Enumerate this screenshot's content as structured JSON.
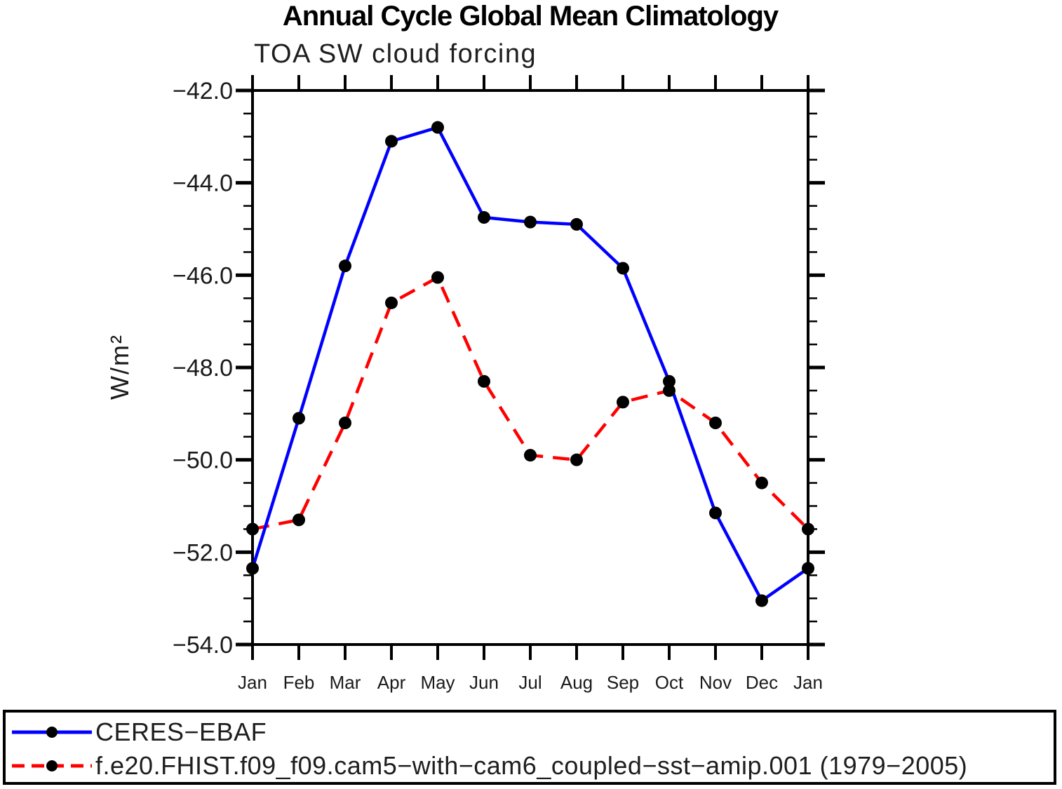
{
  "title": "Annual Cycle Global Mean Climatology",
  "subtitle": "TOA SW cloud forcing",
  "chart_data": {
    "type": "line",
    "categories": [
      "Jan",
      "Feb",
      "Mar",
      "Apr",
      "May",
      "Jun",
      "Jul",
      "Aug",
      "Sep",
      "Oct",
      "Nov",
      "Dec",
      "Jan"
    ],
    "xlabel": "",
    "ylabel": "W/m²",
    "ylim": [
      -54.0,
      -42.0
    ],
    "ytick_step": 2.0,
    "yminor_step": 0.5,
    "ytick_labels": [
      "−42.0",
      "−44.0",
      "−46.0",
      "−48.0",
      "−50.0",
      "−52.0",
      "−54.0"
    ],
    "grid": false,
    "legend_position": "bottom",
    "series": [
      {
        "name": "CERES−EBAF",
        "color": "#0000ff",
        "line_style": "solid",
        "marker": "filled-circle",
        "marker_color": "#000000",
        "values": [
          -52.35,
          -49.1,
          -45.8,
          -43.1,
          -42.8,
          -44.75,
          -44.85,
          -44.9,
          -45.85,
          -48.3,
          -51.15,
          -53.05,
          -52.35
        ]
      },
      {
        "name": "f.e20.FHIST.f09_f09.cam5−with−cam6_coupled−sst−amip.001 (1979−2005)",
        "color": "#ff0000",
        "line_style": "dashed",
        "marker": "filled-circle",
        "marker_color": "#000000",
        "values": [
          -51.5,
          -51.3,
          -49.2,
          -46.6,
          -46.05,
          -48.3,
          -49.9,
          -50.0,
          -48.75,
          -48.5,
          -49.2,
          -50.5,
          -51.5
        ]
      }
    ]
  }
}
